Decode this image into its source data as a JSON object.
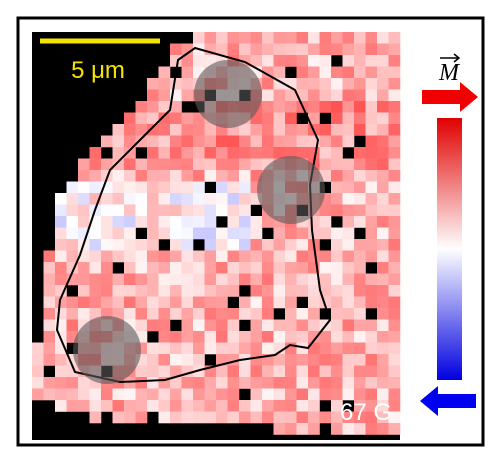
{
  "scale_bar": {
    "label": "5 μm"
  },
  "field_label": "67 G",
  "colorbar": {
    "label": "M"
  }
}
